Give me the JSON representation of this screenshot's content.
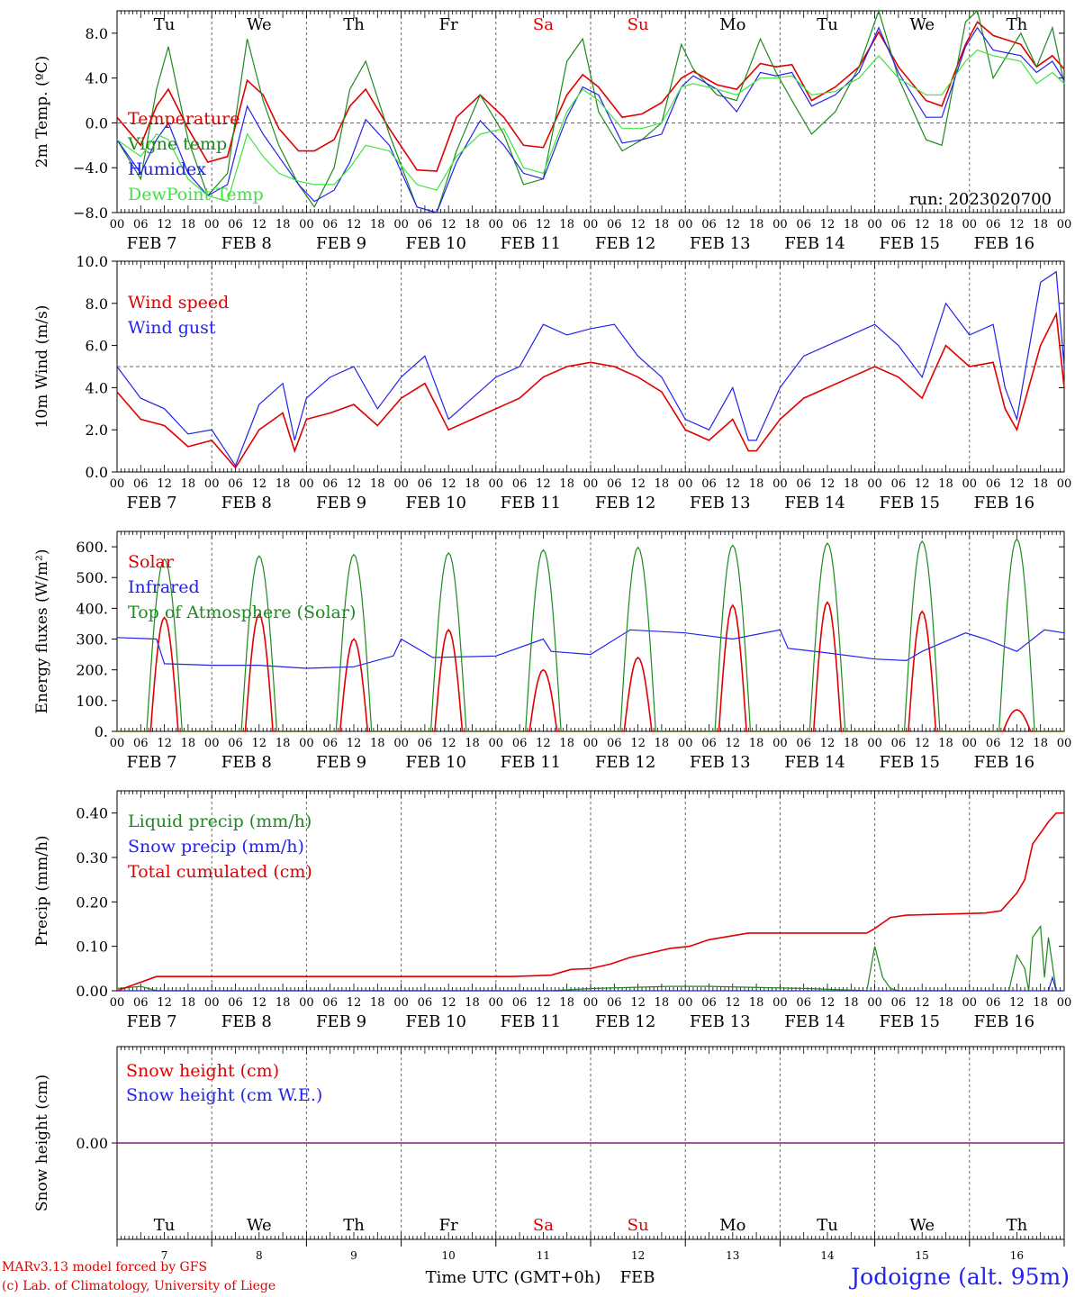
{
  "figure": {
    "credit_line1": "MARv3.13 model forced by GFS",
    "credit_line2": "(c) Lab. of Climatology, University of Liege",
    "location": "Jodoigne (alt. 95m)",
    "run_label": "run: 2023020700",
    "xaxis_label": "Time UTC (GMT+0h)",
    "xaxis_month": "FEB"
  },
  "colors": {
    "red": "#e00000",
    "green": "#1e8a1e",
    "blue": "#2222ee",
    "light_green": "#3ee43e",
    "purple": "#7a3aa8",
    "grid": "#666666"
  },
  "x_axis": {
    "unit": "hours since 2023-02-07 00 UTC",
    "range": [
      0,
      240
    ],
    "hour_ticks": [
      "00",
      "06",
      "12",
      "18"
    ],
    "date_labels": [
      "FEB  7",
      "FEB  8",
      "FEB  9",
      "FEB 10",
      "FEB 11",
      "FEB 12",
      "FEB 13",
      "FEB 14",
      "FEB 15",
      "FEB 16"
    ],
    "day_names": [
      "Tu",
      "We",
      "Th",
      "Fr",
      "Sa",
      "Su",
      "Mo",
      "Tu",
      "We",
      "Th"
    ],
    "weekend_days": [
      4,
      5
    ],
    "day_numbers": [
      "7",
      "8",
      "9",
      "10",
      "11",
      "12",
      "13",
      "14",
      "15",
      "16"
    ]
  },
  "chart_data": [
    {
      "type": "line",
      "ylabel": "2m Temp. (ºC)",
      "ylim": [
        -8,
        10
      ],
      "yticks": [
        -8,
        -4,
        0,
        4,
        8
      ],
      "ytick_labels": [
        "−8.0",
        "−4.0",
        "0.0",
        "4.0",
        "8.0"
      ],
      "reference_line": 0,
      "series": [
        {
          "name": "Temperature",
          "color_key": "red",
          "x": [
            0,
            6,
            10,
            13,
            18,
            23,
            28,
            33,
            37,
            41,
            46,
            50,
            55,
            59,
            63,
            69,
            76,
            81,
            86,
            92,
            98,
            103,
            108,
            114,
            118,
            122,
            128,
            133,
            138,
            143,
            146,
            152,
            157,
            163,
            167,
            171,
            176,
            182,
            188,
            193,
            198,
            205,
            209,
            215,
            218,
            222,
            229,
            233,
            237,
            240
          ],
          "y": [
            0.5,
            -2.0,
            1.5,
            3.0,
            -0.5,
            -3.5,
            -3.0,
            3.8,
            2.5,
            -0.5,
            -2.5,
            -2.5,
            -1.5,
            1.5,
            3.0,
            -0.5,
            -4.2,
            -4.3,
            0.5,
            2.5,
            0.5,
            -2.0,
            -2.2,
            2.5,
            4.3,
            3.2,
            0.5,
            0.8,
            1.8,
            4.0,
            4.6,
            3.4,
            3.0,
            5.3,
            5.0,
            5.2,
            2.0,
            3.2,
            5.0,
            8.1,
            5.0,
            2.0,
            1.5,
            7.0,
            9.0,
            7.8,
            7.0,
            5.0,
            6.0,
            4.8
          ]
        },
        {
          "name": "Vigne temp",
          "color_key": "green",
          "x": [
            0,
            6,
            10,
            13,
            18,
            23,
            28,
            33,
            37,
            41,
            46,
            50,
            55,
            59,
            63,
            69,
            76,
            81,
            86,
            92,
            98,
            103,
            108,
            114,
            118,
            122,
            128,
            133,
            138,
            143,
            146,
            152,
            157,
            163,
            167,
            171,
            176,
            182,
            188,
            193,
            198,
            205,
            209,
            215,
            218,
            222,
            229,
            233,
            237,
            240
          ],
          "y": [
            -1.5,
            -5.0,
            3.0,
            6.8,
            -1.5,
            -6.5,
            -4.5,
            7.5,
            2.0,
            -2.0,
            -5.5,
            -7.5,
            -4.0,
            3.0,
            5.5,
            -1.0,
            -7.5,
            -8.0,
            -2.5,
            2.5,
            -1.0,
            -5.5,
            -5.0,
            5.5,
            7.5,
            1.0,
            -2.5,
            -1.5,
            0.0,
            7.0,
            4.8,
            2.5,
            2.0,
            7.5,
            4.5,
            2.0,
            -1.0,
            1.0,
            5.0,
            10.0,
            4.0,
            -1.5,
            -2.0,
            9.0,
            10.0,
            4.0,
            8.0,
            5.0,
            8.5,
            3.5
          ]
        },
        {
          "name": "Humidex",
          "color_key": "blue",
          "x": [
            0,
            6,
            10,
            13,
            18,
            23,
            28,
            33,
            37,
            41,
            46,
            50,
            55,
            59,
            63,
            69,
            76,
            81,
            86,
            92,
            98,
            103,
            108,
            114,
            118,
            122,
            128,
            133,
            138,
            143,
            146,
            152,
            157,
            163,
            167,
            171,
            176,
            182,
            188,
            193,
            198,
            205,
            209,
            215,
            218,
            222,
            229,
            233,
            237,
            240
          ],
          "y": [
            -1.5,
            -4.5,
            -1.5,
            0.0,
            -4.5,
            -6.5,
            -5.5,
            1.5,
            -1.0,
            -3.0,
            -5.5,
            -7.0,
            -6.0,
            -3.5,
            0.3,
            -2.0,
            -7.5,
            -8.0,
            -3.5,
            0.2,
            -2.0,
            -4.5,
            -5.0,
            0.5,
            3.2,
            2.5,
            -1.8,
            -1.5,
            -1.0,
            3.2,
            4.2,
            3.0,
            1.0,
            4.5,
            4.2,
            4.5,
            1.5,
            2.5,
            4.5,
            8.5,
            4.5,
            0.5,
            0.5,
            6.8,
            8.5,
            6.5,
            6.0,
            4.5,
            5.5,
            3.8
          ]
        },
        {
          "name": "DewPoint Temp",
          "color_key": "light_green",
          "x": [
            0,
            6,
            10,
            13,
            18,
            23,
            28,
            33,
            37,
            41,
            46,
            50,
            55,
            59,
            63,
            69,
            76,
            81,
            86,
            92,
            98,
            103,
            108,
            114,
            118,
            122,
            128,
            133,
            138,
            143,
            146,
            152,
            157,
            163,
            167,
            171,
            176,
            182,
            188,
            193,
            198,
            205,
            209,
            215,
            218,
            222,
            229,
            233,
            237,
            240
          ],
          "y": [
            -1.5,
            -3.0,
            -1.0,
            -1.5,
            -5.0,
            -6.5,
            -7.0,
            -1.0,
            -3.0,
            -4.5,
            -5.2,
            -5.5,
            -5.5,
            -4.0,
            -2.0,
            -2.5,
            -5.5,
            -6.0,
            -3.0,
            -1.0,
            -0.5,
            -4.0,
            -4.5,
            1.0,
            3.0,
            2.0,
            -0.5,
            -0.5,
            0.0,
            3.2,
            3.5,
            3.0,
            2.5,
            4.0,
            4.0,
            4.2,
            2.5,
            2.8,
            4.0,
            6.0,
            4.0,
            2.5,
            2.5,
            5.5,
            6.5,
            6.0,
            5.5,
            3.5,
            4.5,
            3.5
          ]
        }
      ]
    },
    {
      "type": "line",
      "ylabel": "10m Wind (m/s)",
      "ylim": [
        0,
        10
      ],
      "yticks": [
        0,
        2,
        4,
        6,
        8,
        10
      ],
      "ytick_labels": [
        "0.0",
        "2.0",
        "4.0",
        "6.0",
        "8.0",
        "10.0"
      ],
      "reference_line": 5,
      "series": [
        {
          "name": "Wind speed",
          "color_key": "red",
          "x": [
            0,
            6,
            12,
            18,
            24,
            30,
            36,
            42,
            45,
            48,
            54,
            60,
            66,
            72,
            78,
            84,
            90,
            96,
            102,
            108,
            114,
            120,
            126,
            132,
            138,
            144,
            150,
            156,
            160,
            162,
            168,
            174,
            180,
            186,
            192,
            198,
            204,
            210,
            216,
            222,
            225,
            228,
            234,
            238,
            240
          ],
          "y": [
            3.8,
            2.5,
            2.2,
            1.2,
            1.5,
            0.2,
            2.0,
            2.8,
            1.0,
            2.5,
            2.8,
            3.2,
            2.2,
            3.5,
            4.2,
            2.0,
            2.5,
            3.0,
            3.5,
            4.5,
            5.0,
            5.2,
            5.0,
            4.5,
            3.8,
            2.0,
            1.5,
            2.5,
            1.0,
            1.0,
            2.5,
            3.5,
            4.0,
            4.5,
            5.0,
            4.5,
            3.5,
            6.0,
            5.0,
            5.2,
            3.0,
            2.0,
            6.0,
            7.5,
            4.0
          ]
        },
        {
          "name": "Wind gust",
          "color_key": "blue",
          "x": [
            0,
            6,
            12,
            18,
            24,
            30,
            36,
            42,
            45,
            48,
            54,
            60,
            66,
            72,
            78,
            84,
            90,
            96,
            102,
            108,
            114,
            120,
            126,
            132,
            138,
            144,
            150,
            156,
            160,
            162,
            168,
            174,
            180,
            186,
            192,
            198,
            204,
            210,
            216,
            222,
            225,
            228,
            234,
            238,
            240
          ],
          "y": [
            5.0,
            3.5,
            3.0,
            1.8,
            2.0,
            0.3,
            3.2,
            4.2,
            1.5,
            3.5,
            4.5,
            5.0,
            3.0,
            4.5,
            5.5,
            2.5,
            3.5,
            4.5,
            5.0,
            7.0,
            6.5,
            6.8,
            7.0,
            5.5,
            4.5,
            2.5,
            2.0,
            4.0,
            1.5,
            1.5,
            4.0,
            5.5,
            6.0,
            6.5,
            7.0,
            6.0,
            4.5,
            8.0,
            6.5,
            7.0,
            4.0,
            2.5,
            9.0,
            9.5,
            5.0
          ]
        }
      ]
    },
    {
      "type": "line",
      "ylabel": "Energy fluxes (W/m²)",
      "ylim": [
        0,
        650
      ],
      "yticks": [
        0,
        100,
        200,
        300,
        400,
        500,
        600
      ],
      "ytick_labels": [
        "0.",
        "100.",
        "200.",
        "300.",
        "400.",
        "500.",
        "600."
      ],
      "series": [
        {
          "name": "Solar",
          "color_key": "red",
          "peaks": [
            370,
            380,
            300,
            330,
            200,
            240,
            410,
            420,
            390,
            70
          ],
          "x": "diurnal 07-16 h each day",
          "y": "peaks per day"
        },
        {
          "name": "Infrared",
          "color_key": "blue",
          "x": [
            0,
            10,
            12,
            24,
            36,
            48,
            60,
            70,
            72,
            80,
            96,
            108,
            110,
            120,
            130,
            144,
            156,
            168,
            170,
            180,
            192,
            200,
            204,
            215,
            220,
            228,
            235,
            240
          ],
          "y": [
            305,
            300,
            220,
            215,
            215,
            205,
            210,
            245,
            300,
            240,
            245,
            300,
            260,
            250,
            330,
            320,
            300,
            330,
            270,
            255,
            235,
            230,
            260,
            320,
            300,
            260,
            330,
            320
          ]
        },
        {
          "name": "Top of Atmosphere (Solar)",
          "color_key": "green",
          "peaks": [
            560,
            570,
            575,
            580,
            590,
            598,
            605,
            612,
            618,
            625
          ],
          "x": "diurnal 07-16 h each day",
          "y": "peaks per day"
        }
      ]
    },
    {
      "type": "line",
      "ylabel": "Precip (mm/h)",
      "ylim": [
        0,
        0.45
      ],
      "yticks": [
        0,
        0.1,
        0.2,
        0.3,
        0.4
      ],
      "ytick_labels": [
        "0.00",
        "0.10",
        "0.20",
        "0.30",
        "0.40"
      ],
      "series": [
        {
          "name": "Liquid precip (mm/h)",
          "color_key": "green",
          "x": [
            0,
            6,
            10,
            110,
            120,
            140,
            150,
            175,
            190,
            192,
            194,
            196,
            198,
            226,
            228,
            230,
            231,
            232,
            234,
            235,
            236,
            238,
            240
          ],
          "y": [
            0.005,
            0.01,
            0,
            0,
            0.005,
            0.01,
            0.01,
            0.005,
            0.0,
            0.1,
            0.03,
            0.005,
            0,
            0,
            0.08,
            0.05,
            0.0,
            0.12,
            0.145,
            0.03,
            0.12,
            0.0,
            0.0
          ]
        },
        {
          "name": "Snow precip (mm/h)",
          "color_key": "blue",
          "x": [
            0,
            236,
            237,
            238,
            240
          ],
          "y": [
            0,
            0,
            0.03,
            0,
            0
          ]
        },
        {
          "name": "Total cumulated (cm)",
          "color_key": "red",
          "x": [
            0,
            10,
            100,
            110,
            115,
            120,
            125,
            130,
            135,
            140,
            145,
            150,
            160,
            190,
            192,
            196,
            200,
            220,
            224,
            228,
            230,
            232,
            236,
            238,
            240
          ],
          "y": [
            0.0,
            0.032,
            0.032,
            0.035,
            0.048,
            0.05,
            0.06,
            0.075,
            0.085,
            0.095,
            0.1,
            0.115,
            0.13,
            0.13,
            0.14,
            0.165,
            0.17,
            0.175,
            0.18,
            0.22,
            0.25,
            0.33,
            0.38,
            0.4,
            0.4
          ]
        }
      ]
    },
    {
      "type": "line",
      "ylabel": "Snow height (cm)",
      "ylim": [
        -1,
        1
      ],
      "yticks": [
        0
      ],
      "ytick_labels": [
        "0.00"
      ],
      "series": [
        {
          "name": "Snow height (cm)",
          "color_key": "red",
          "x": [
            0,
            240
          ],
          "y": [
            0,
            0
          ]
        },
        {
          "name": "Snow height (cm W.E.)",
          "color_key": "blue",
          "x": [
            0,
            240
          ],
          "y": [
            0,
            0
          ]
        }
      ]
    }
  ]
}
